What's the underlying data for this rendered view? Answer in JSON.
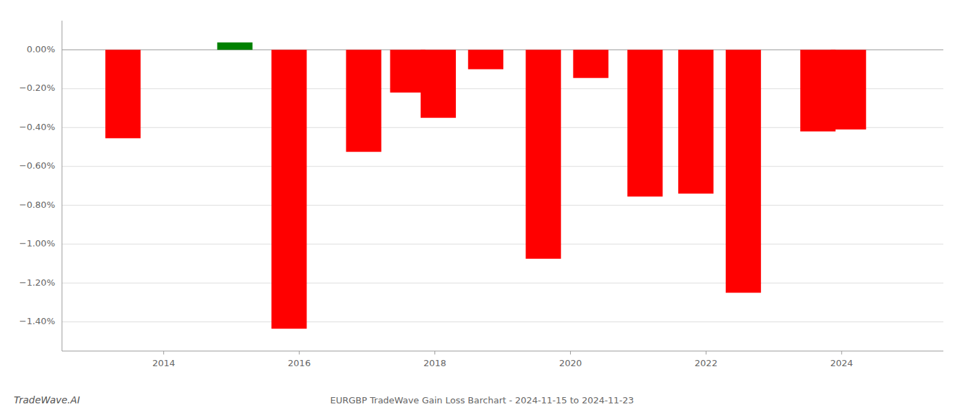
{
  "chart_data": {
    "type": "bar",
    "x": [
      2013.4,
      2015.05,
      2015.85,
      2016.95,
      2017.6,
      2018.05,
      2018.75,
      2019.6,
      2020.3,
      2021.1,
      2021.85,
      2022.55,
      2023.65,
      2024.1
    ],
    "values": [
      -0.455,
      0.038,
      -1.435,
      -0.525,
      -0.22,
      -0.35,
      -0.1,
      -1.075,
      -0.145,
      -0.755,
      -0.74,
      -1.25,
      -0.42,
      -0.41
    ],
    "colors": [
      "#ff0000",
      "#008000",
      "#ff0000",
      "#ff0000",
      "#ff0000",
      "#ff0000",
      "#ff0000",
      "#ff0000",
      "#ff0000",
      "#ff0000",
      "#ff0000",
      "#ff0000",
      "#ff0000",
      "#ff0000"
    ],
    "ylim": [
      -1.55,
      0.15
    ],
    "yticks": [
      {
        "value": 0.0,
        "label": "0.00%"
      },
      {
        "value": -0.2,
        "label": "−0.20%"
      },
      {
        "value": -0.4,
        "label": "−0.40%"
      },
      {
        "value": -0.6,
        "label": "−0.60%"
      },
      {
        "value": -0.8,
        "label": "−0.80%"
      },
      {
        "value": -1.0,
        "label": "−1.00%"
      },
      {
        "value": -1.2,
        "label": "−1.20%"
      },
      {
        "value": -1.4,
        "label": "−1.40%"
      }
    ],
    "xlim": [
      2012.5,
      2025.5
    ],
    "xticks": [
      2014,
      2016,
      2018,
      2020,
      2022,
      2024
    ],
    "grid": true,
    "annotations": [
      "EURGBP TradeWave Gain Loss Barchart - 2024-11-15 to 2024-11-23",
      "TradeWave.AI"
    ]
  }
}
